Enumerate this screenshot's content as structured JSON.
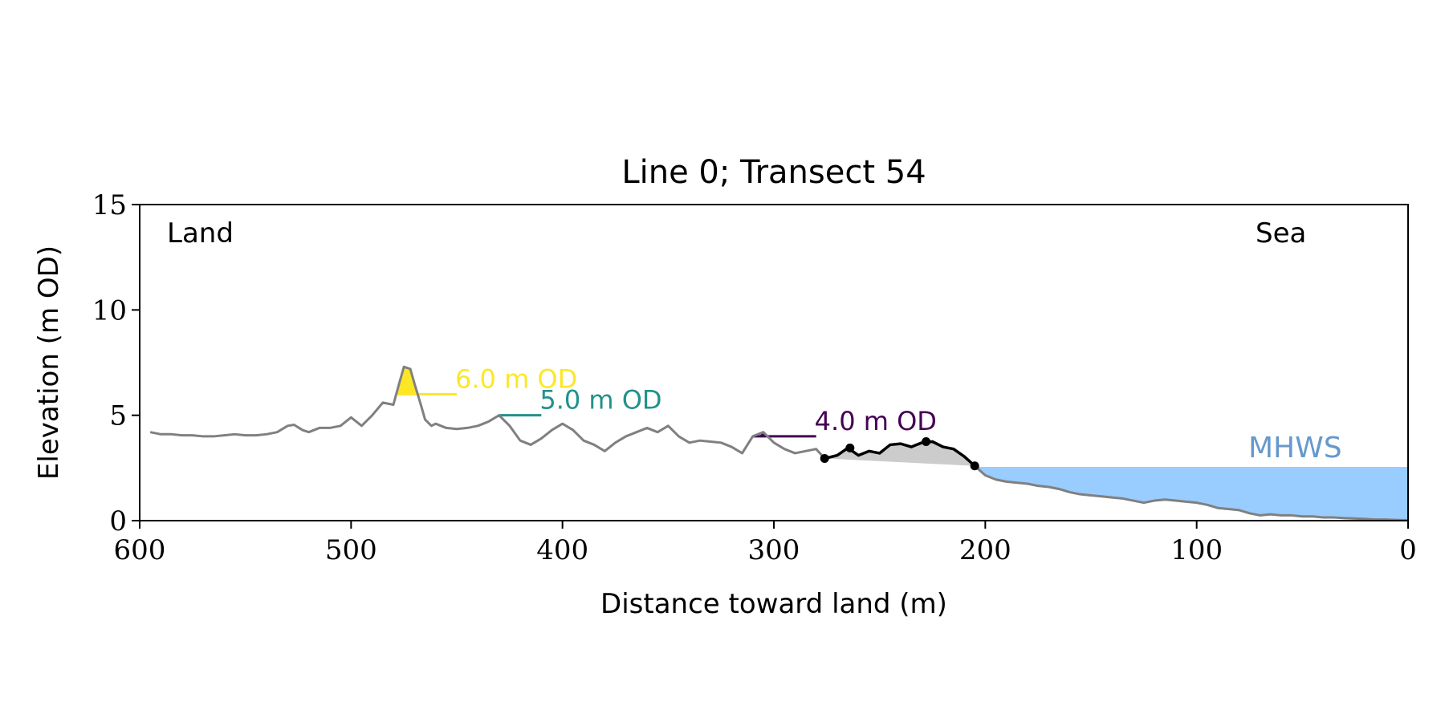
{
  "chart_data": {
    "type": "line",
    "title": "Line 0; Transect 54",
    "xlabel": "Distance toward land (m)",
    "ylabel": "Elevation (m OD)",
    "xlim": [
      600,
      0
    ],
    "ylim": [
      0,
      15
    ],
    "xticks": [
      600,
      500,
      400,
      300,
      200,
      100,
      0
    ],
    "yticks": [
      0,
      5,
      10,
      15
    ],
    "grid": false,
    "corner_labels": {
      "left": "Land",
      "right": "Sea"
    },
    "colors": {
      "profile": "#808080",
      "crest_segment": "#000000",
      "fill": "#cccccc",
      "mhws": "#99ccff",
      "mhws_label": "#6699cc",
      "level_6": "#fde725",
      "level_5": "#21918c",
      "level_4": "#440154"
    },
    "mhws": {
      "label": "MHWS",
      "elevation": 2.55,
      "x_from": 205,
      "x_to": 0
    },
    "levels": [
      {
        "label": "6.0 m OD",
        "elevation": 6.0,
        "x_from": 478,
        "x_to": 450
      },
      {
        "label": "5.0 m OD",
        "elevation": 5.0,
        "x_from": 430,
        "x_to": 410
      },
      {
        "label": "4.0 m OD",
        "elevation": 4.0,
        "x_from": 310,
        "x_to": 280
      }
    ],
    "profile": {
      "x": [
        595,
        590,
        585,
        580,
        575,
        570,
        565,
        560,
        555,
        550,
        545,
        540,
        535,
        530,
        527,
        523,
        520,
        515,
        510,
        505,
        500,
        495,
        490,
        485,
        480,
        477,
        475,
        472,
        470,
        467,
        465,
        462,
        460,
        455,
        450,
        445,
        440,
        435,
        430,
        425,
        420,
        415,
        410,
        405,
        400,
        395,
        390,
        385,
        380,
        375,
        370,
        365,
        360,
        355,
        350,
        345,
        340,
        335,
        330,
        325,
        320,
        315,
        310,
        305,
        300,
        295,
        290,
        285,
        280,
        276,
        270,
        265,
        260,
        255,
        250,
        245,
        240,
        235,
        230,
        225,
        220,
        215,
        210,
        205,
        200,
        195,
        190,
        185,
        180,
        175,
        170,
        165,
        160,
        155,
        150,
        145,
        140,
        135,
        130,
        125,
        120,
        115,
        110,
        105,
        100,
        95,
        90,
        85,
        80,
        75,
        70,
        65,
        60,
        55,
        50,
        45,
        40,
        35,
        30,
        25,
        20,
        15,
        10,
        5,
        0
      ],
      "y": [
        4.2,
        4.1,
        4.1,
        4.05,
        4.05,
        4.0,
        4.0,
        4.05,
        4.1,
        4.05,
        4.05,
        4.1,
        4.2,
        4.5,
        4.55,
        4.3,
        4.2,
        4.4,
        4.4,
        4.5,
        4.9,
        4.5,
        5.0,
        5.6,
        5.5,
        6.6,
        7.3,
        7.2,
        6.5,
        5.5,
        4.8,
        4.5,
        4.6,
        4.4,
        4.35,
        4.4,
        4.5,
        4.7,
        5.0,
        4.5,
        3.8,
        3.6,
        3.9,
        4.3,
        4.6,
        4.3,
        3.8,
        3.6,
        3.3,
        3.7,
        4.0,
        4.2,
        4.4,
        4.2,
        4.5,
        4.0,
        3.7,
        3.8,
        3.75,
        3.7,
        3.5,
        3.2,
        4.0,
        4.2,
        3.7,
        3.4,
        3.2,
        3.3,
        3.4,
        2.95,
        3.1,
        3.45,
        3.1,
        3.3,
        3.2,
        3.6,
        3.65,
        3.5,
        3.7,
        3.75,
        3.5,
        3.4,
        3.05,
        2.6,
        2.15,
        1.95,
        1.85,
        1.8,
        1.75,
        1.65,
        1.6,
        1.5,
        1.35,
        1.25,
        1.2,
        1.15,
        1.1,
        1.05,
        0.95,
        0.85,
        0.95,
        1.0,
        0.95,
        0.9,
        0.85,
        0.75,
        0.6,
        0.55,
        0.5,
        0.35,
        0.25,
        0.3,
        0.25,
        0.25,
        0.2,
        0.2,
        0.15,
        0.15,
        0.12,
        0.1,
        0.08,
        0.05,
        0.05,
        0.03,
        0.02
      ]
    },
    "crest_segment": {
      "x": [
        276,
        270,
        265,
        260,
        255,
        250,
        245,
        240,
        235,
        230,
        225,
        220,
        215,
        210,
        205
      ],
      "y": [
        2.95,
        3.1,
        3.45,
        3.1,
        3.3,
        3.2,
        3.6,
        3.65,
        3.5,
        3.7,
        3.75,
        3.5,
        3.4,
        3.05,
        2.6
      ]
    },
    "markers": {
      "x": [
        276,
        264,
        228,
        205
      ],
      "y": [
        2.95,
        3.45,
        3.75,
        2.6
      ]
    }
  }
}
